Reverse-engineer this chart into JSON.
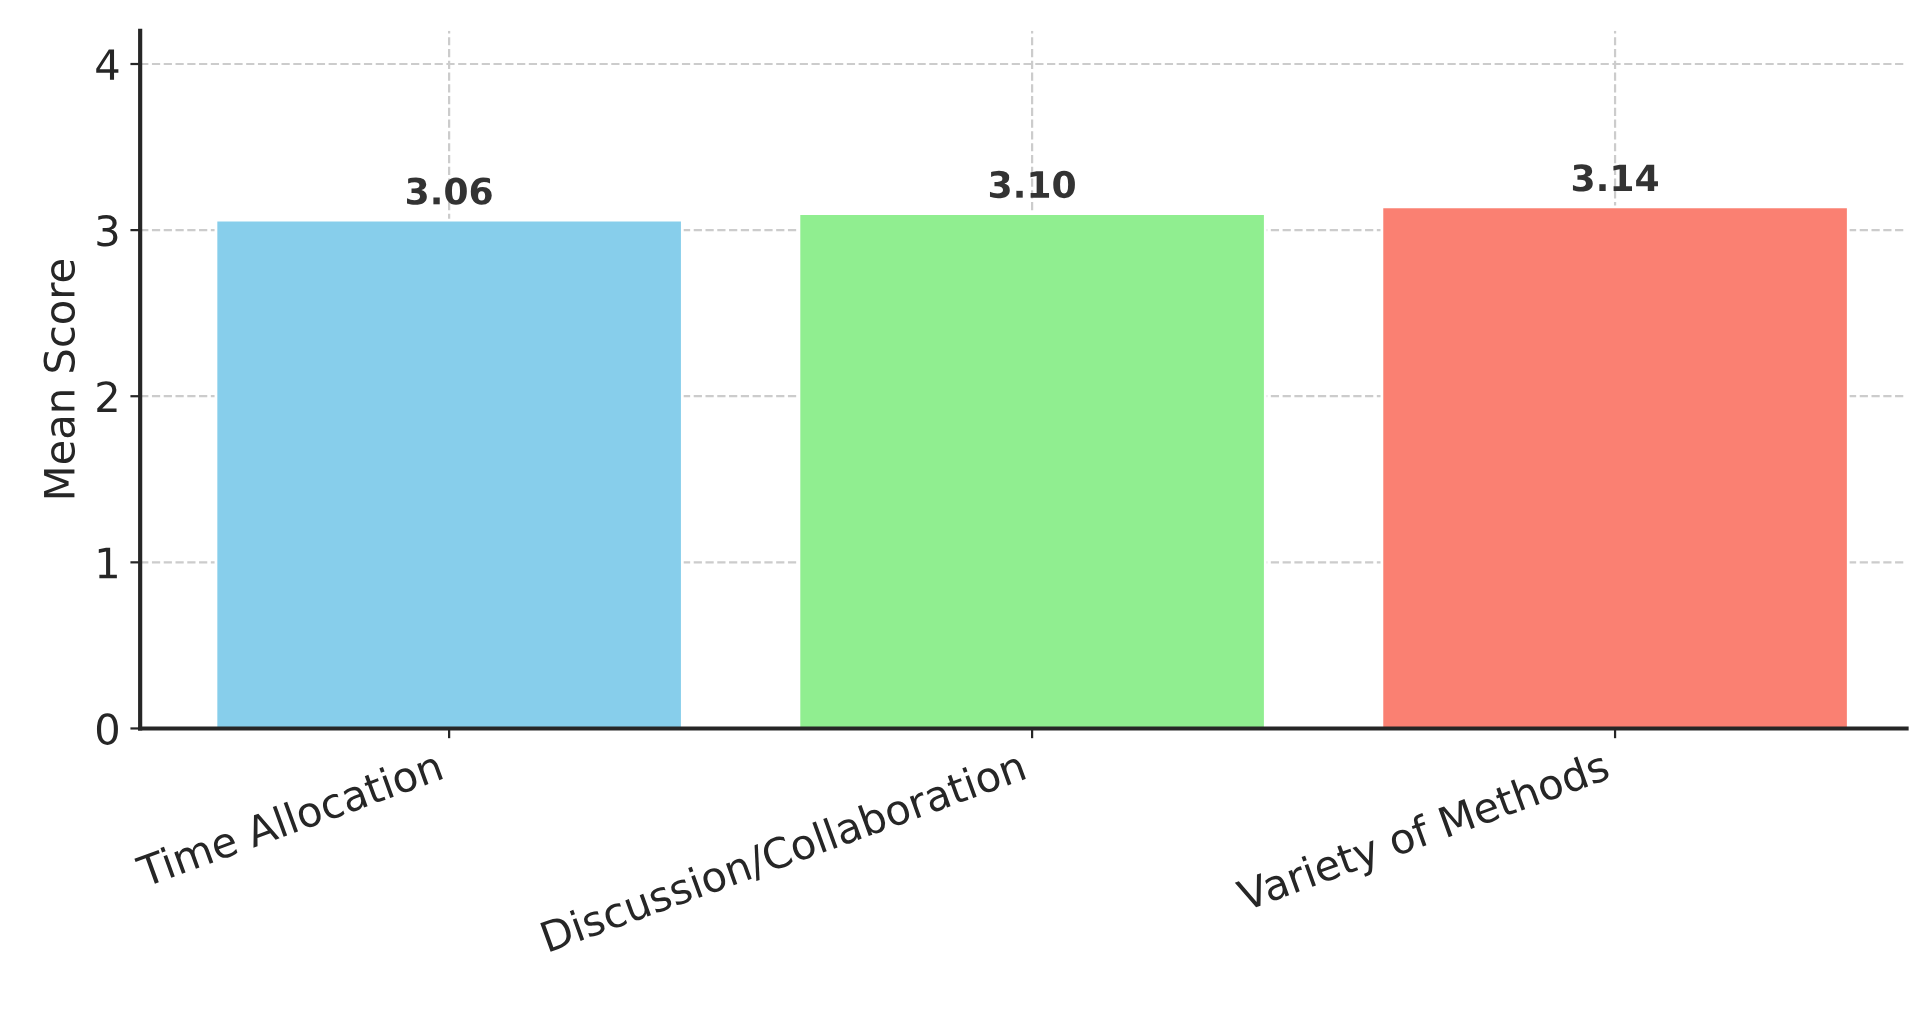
{
  "chart_data": {
    "type": "bar",
    "ylabel": "Mean Score",
    "categories": [
      "Time Allocation",
      "Discussion/Collaboration",
      "Variety of Methods"
    ],
    "values": [
      3.06,
      3.1,
      3.14
    ],
    "colors": [
      "#87ceeb",
      "#90ee90",
      "#fa8072"
    ],
    "value_labels": [
      "3.06",
      "3.10",
      "3.14"
    ],
    "ylim": [
      0,
      4.2
    ],
    "yticks": [
      0,
      1,
      2,
      3,
      4
    ],
    "grid": true
  }
}
